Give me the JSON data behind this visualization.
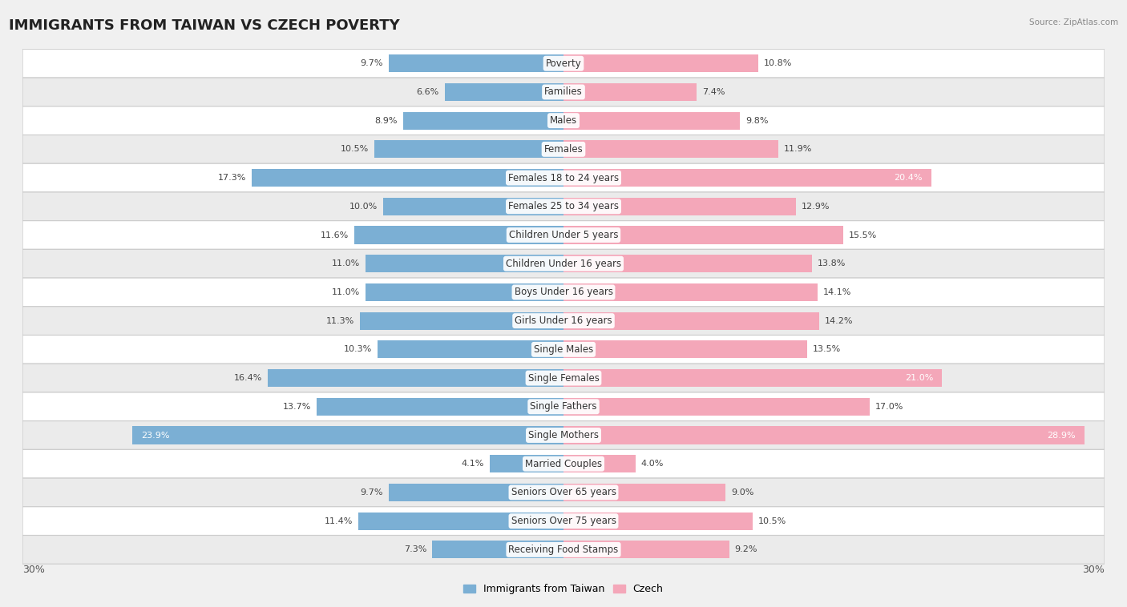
{
  "title": "IMMIGRANTS FROM TAIWAN VS CZECH POVERTY",
  "source": "Source: ZipAtlas.com",
  "categories": [
    "Poverty",
    "Families",
    "Males",
    "Females",
    "Females 18 to 24 years",
    "Females 25 to 34 years",
    "Children Under 5 years",
    "Children Under 16 years",
    "Boys Under 16 years",
    "Girls Under 16 years",
    "Single Males",
    "Single Females",
    "Single Fathers",
    "Single Mothers",
    "Married Couples",
    "Seniors Over 65 years",
    "Seniors Over 75 years",
    "Receiving Food Stamps"
  ],
  "taiwan_values": [
    9.7,
    6.6,
    8.9,
    10.5,
    17.3,
    10.0,
    11.6,
    11.0,
    11.0,
    11.3,
    10.3,
    16.4,
    13.7,
    23.9,
    4.1,
    9.7,
    11.4,
    7.3
  ],
  "czech_values": [
    10.8,
    7.4,
    9.8,
    11.9,
    20.4,
    12.9,
    15.5,
    13.8,
    14.1,
    14.2,
    13.5,
    21.0,
    17.0,
    28.9,
    4.0,
    9.0,
    10.5,
    9.2
  ],
  "taiwan_color": "#7bafd4",
  "czech_color": "#f4a7b9",
  "taiwan_label": "Immigrants from Taiwan",
  "czech_label": "Czech",
  "row_colors": [
    "#ffffff",
    "#ebebeb"
  ],
  "xlim": 30.0,
  "label_fontsize": 8.5,
  "title_fontsize": 13,
  "value_fontsize": 8.0,
  "axis_label_fontsize": 9
}
